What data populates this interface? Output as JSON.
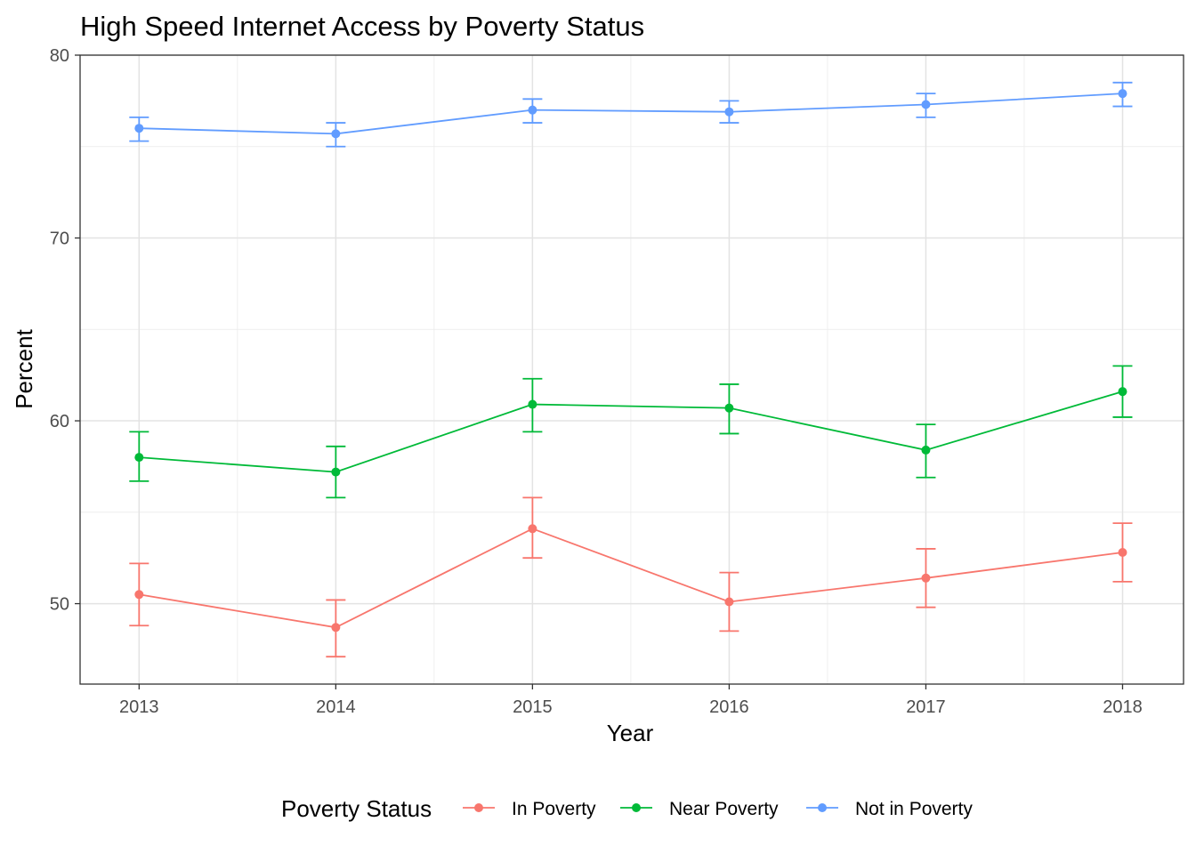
{
  "chart_data": {
    "type": "line",
    "title": "High Speed Internet Access by Poverty Status",
    "xlabel": "Year",
    "ylabel": "Percent",
    "x": [
      2013,
      2014,
      2015,
      2016,
      2017,
      2018
    ],
    "x_tick_labels": [
      "2013",
      "2014",
      "2015",
      "2016",
      "2017",
      "2018"
    ],
    "y_ticks": [
      50,
      60,
      70,
      80
    ],
    "y_tick_labels": [
      "50",
      "60",
      "70",
      "80"
    ],
    "xlim": [
      2012.7,
      2018.31
    ],
    "ylim": [
      45.6,
      80
    ],
    "grid": true,
    "legend_placement": "bottom",
    "legend_title": "Poverty Status",
    "error_bars": true,
    "series": [
      {
        "name": "In Poverty",
        "color": "#F8766D",
        "values": [
          50.5,
          48.7,
          54.1,
          50.1,
          51.4,
          52.8
        ],
        "lower": [
          48.8,
          47.1,
          52.5,
          48.5,
          49.8,
          51.2
        ],
        "upper": [
          52.2,
          50.2,
          55.8,
          51.7,
          53.0,
          54.4
        ]
      },
      {
        "name": "Near Poverty",
        "color": "#00BA38",
        "values": [
          58.0,
          57.2,
          60.9,
          60.7,
          58.4,
          61.6
        ],
        "lower": [
          56.7,
          55.8,
          59.4,
          59.3,
          56.9,
          60.2
        ],
        "upper": [
          59.4,
          58.6,
          62.3,
          62.0,
          59.8,
          63.0
        ]
      },
      {
        "name": "Not in Poverty",
        "color": "#619CFF",
        "values": [
          76.0,
          75.7,
          77.0,
          76.9,
          77.3,
          77.9
        ],
        "lower": [
          75.3,
          75.0,
          76.3,
          76.3,
          76.6,
          77.2
        ],
        "upper": [
          76.6,
          76.3,
          77.6,
          77.5,
          77.9,
          78.5
        ]
      }
    ]
  }
}
